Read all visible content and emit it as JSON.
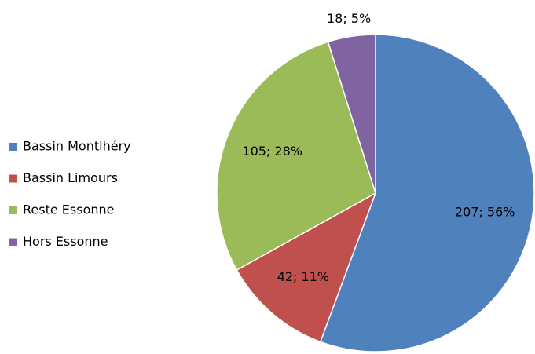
{
  "chart_data": {
    "type": "pie",
    "categories": [
      "Bassin Montlhéry",
      "Bassin Limours",
      "Reste Essonne",
      "Hors Essonne"
    ],
    "values": [
      207,
      42,
      105,
      18
    ],
    "value_labels": [
      "207; 56%",
      "42; 11%",
      "105; 28%",
      "18; 5%"
    ],
    "colors": [
      "#4f81bd",
      "#c0504d",
      "#9bbb59",
      "#8064a2"
    ],
    "legend": "left"
  }
}
